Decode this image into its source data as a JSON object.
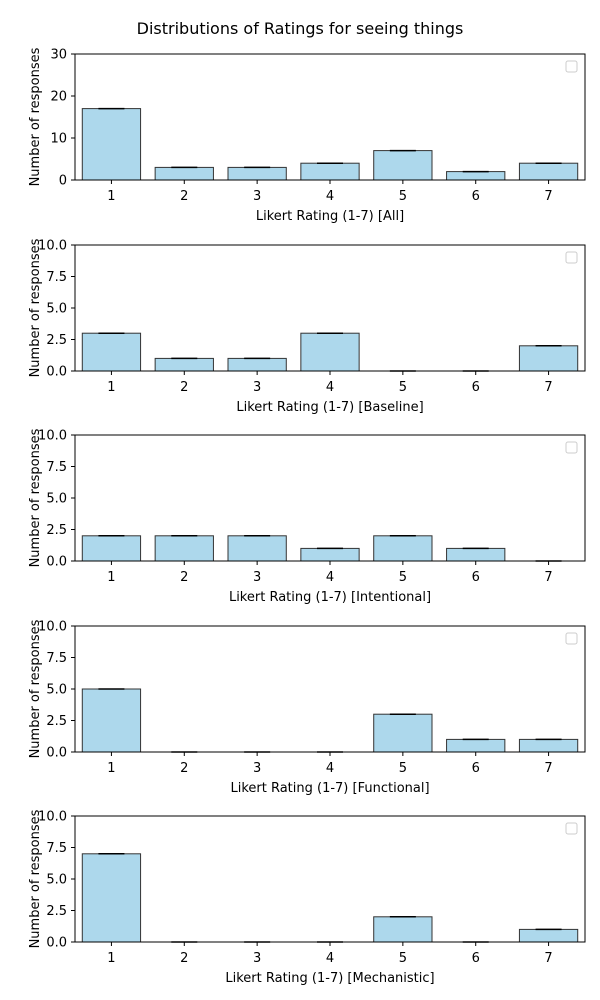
{
  "figure": {
    "suptitle": "Distributions of Ratings for seeing things"
  },
  "colors": {
    "bar_fill": "#add8ec",
    "bar_edge": "#333333",
    "axis": "#000000"
  },
  "chart_data": [
    {
      "type": "bar",
      "categories": [
        "1",
        "2",
        "3",
        "4",
        "5",
        "6",
        "7"
      ],
      "values": [
        17,
        3,
        3,
        4,
        7,
        2,
        4
      ],
      "xlabel": "Likert Rating (1-7) [All]",
      "ylabel": "Number of responses",
      "ylim": [
        0,
        30
      ],
      "yticks": [
        "0",
        "10",
        "20",
        "30"
      ],
      "legend": "top-right (empty)",
      "grid": false
    },
    {
      "type": "bar",
      "categories": [
        "1",
        "2",
        "3",
        "4",
        "5",
        "6",
        "7"
      ],
      "values": [
        3,
        1,
        1,
        3,
        0,
        0,
        2
      ],
      "xlabel": "Likert Rating (1-7) [Baseline]",
      "ylabel": "Number of responses",
      "ylim": [
        0,
        10
      ],
      "yticks": [
        "0.0",
        "2.5",
        "5.0",
        "7.5",
        "10.0"
      ],
      "legend": "top-right (empty)",
      "grid": false
    },
    {
      "type": "bar",
      "categories": [
        "1",
        "2",
        "3",
        "4",
        "5",
        "6",
        "7"
      ],
      "values": [
        2,
        2,
        2,
        1,
        2,
        1,
        0
      ],
      "xlabel": "Likert Rating (1-7) [Intentional]",
      "ylabel": "Number of responses",
      "ylim": [
        0,
        10
      ],
      "yticks": [
        "0.0",
        "2.5",
        "5.0",
        "7.5",
        "10.0"
      ],
      "legend": "top-right (empty)",
      "grid": false
    },
    {
      "type": "bar",
      "categories": [
        "1",
        "2",
        "3",
        "4",
        "5",
        "6",
        "7"
      ],
      "values": [
        5,
        0,
        0,
        0,
        3,
        1,
        1
      ],
      "xlabel": "Likert Rating (1-7) [Functional]",
      "ylabel": "Number of responses",
      "ylim": [
        0,
        10
      ],
      "yticks": [
        "0.0",
        "2.5",
        "5.0",
        "7.5",
        "10.0"
      ],
      "legend": "top-right (empty)",
      "grid": false
    },
    {
      "type": "bar",
      "categories": [
        "1",
        "2",
        "3",
        "4",
        "5",
        "6",
        "7"
      ],
      "values": [
        7,
        0,
        0,
        0,
        2,
        0,
        1
      ],
      "xlabel": "Likert Rating (1-7) [Mechanistic]",
      "ylabel": "Number of responses",
      "ylim": [
        0,
        10
      ],
      "yticks": [
        "0.0",
        "2.5",
        "5.0",
        "7.5",
        "10.0"
      ],
      "legend": "top-right (empty)",
      "grid": false
    }
  ]
}
